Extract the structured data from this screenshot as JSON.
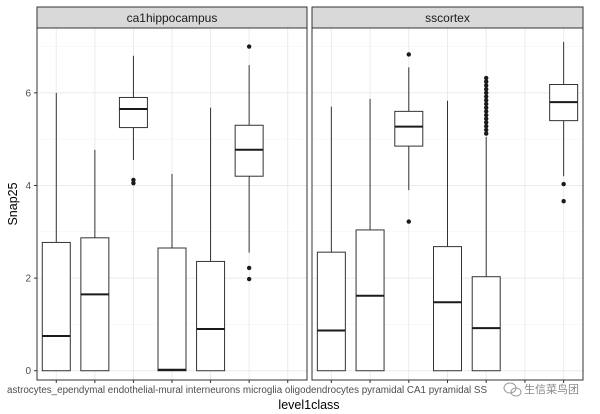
{
  "chart_data": {
    "type": "boxplot",
    "xlabel": "level1class",
    "ylabel": "Snap25",
    "ylim": [
      -0.2,
      7.4
    ],
    "yticks": [
      0,
      2,
      4,
      6
    ],
    "categories": [
      "astrocytes_ependymal",
      "endothelial-mural",
      "interneurons",
      "microglia",
      "oligodendrocytes",
      "pyramidal CA1",
      "pyramidal SS"
    ],
    "tick_label_text": "astrocytes_ependymal endothelial-mural interneurons microglia oligodendrocytes pyramidal CA1 pyramidal SS",
    "panels": [
      {
        "title": "ca1hippocampus",
        "boxes": [
          {
            "category": "astrocytes_ependymal",
            "min": 0,
            "q1": 0,
            "median": 0.75,
            "q3": 2.77,
            "max": 6.0,
            "outliers": []
          },
          {
            "category": "endothelial-mural",
            "min": 0,
            "q1": 0,
            "median": 1.65,
            "q3": 2.87,
            "max": 4.77,
            "outliers": []
          },
          {
            "category": "interneurons",
            "min": 4.55,
            "q1": 5.25,
            "median": 5.65,
            "q3": 5.9,
            "max": 6.8,
            "outliers": [
              4.05,
              4.12
            ]
          },
          {
            "category": "microglia",
            "min": 0,
            "q1": 0,
            "median": 0.02,
            "q3": 2.65,
            "max": 4.25,
            "outliers": []
          },
          {
            "category": "oligodendrocytes",
            "min": 0,
            "q1": 0,
            "median": 0.9,
            "q3": 2.36,
            "max": 5.68,
            "outliers": []
          },
          {
            "category": "pyramidal CA1",
            "min": 2.55,
            "q1": 4.2,
            "median": 4.77,
            "q3": 5.3,
            "max": 6.6,
            "outliers": [
              2.22,
              1.98,
              7.0
            ]
          }
        ]
      },
      {
        "title": "sscortex",
        "boxes": [
          {
            "category": "astrocytes_ependymal",
            "min": 0,
            "q1": 0,
            "median": 0.87,
            "q3": 2.56,
            "max": 5.7,
            "outliers": []
          },
          {
            "category": "endothelial-mural",
            "min": 0,
            "q1": 0,
            "median": 1.62,
            "q3": 3.04,
            "max": 5.87,
            "outliers": []
          },
          {
            "category": "interneurons",
            "min": 3.9,
            "q1": 4.85,
            "median": 5.27,
            "q3": 5.6,
            "max": 6.55,
            "outliers": [
              3.22,
              6.83
            ]
          },
          {
            "category": "microglia",
            "min": 0,
            "q1": 0,
            "median": 1.48,
            "q3": 2.68,
            "max": 5.83,
            "outliers": []
          },
          {
            "category": "oligodendrocytes",
            "min": 0,
            "q1": 0,
            "median": 0.92,
            "q3": 2.03,
            "max": 5.05,
            "outliers": [
              5.12,
              5.2,
              5.28,
              5.36,
              5.44,
              5.52,
              5.6,
              5.68,
              5.76,
              5.84,
              5.92,
              6.0,
              6.08,
              6.16,
              6.24,
              6.32
            ]
          },
          {
            "category": "pyramidal SS",
            "min": 4.2,
            "q1": 5.4,
            "median": 5.8,
            "q3": 6.18,
            "max": 7.1,
            "outliers": [
              4.03,
              3.66
            ]
          }
        ]
      }
    ]
  },
  "watermark": {
    "label": "生信菜鸟团",
    "icon": "wechat-icon"
  },
  "colors": {
    "strip_fill": "#d9d9d9",
    "panel_border": "#333333",
    "grid": "#ebebeb"
  }
}
